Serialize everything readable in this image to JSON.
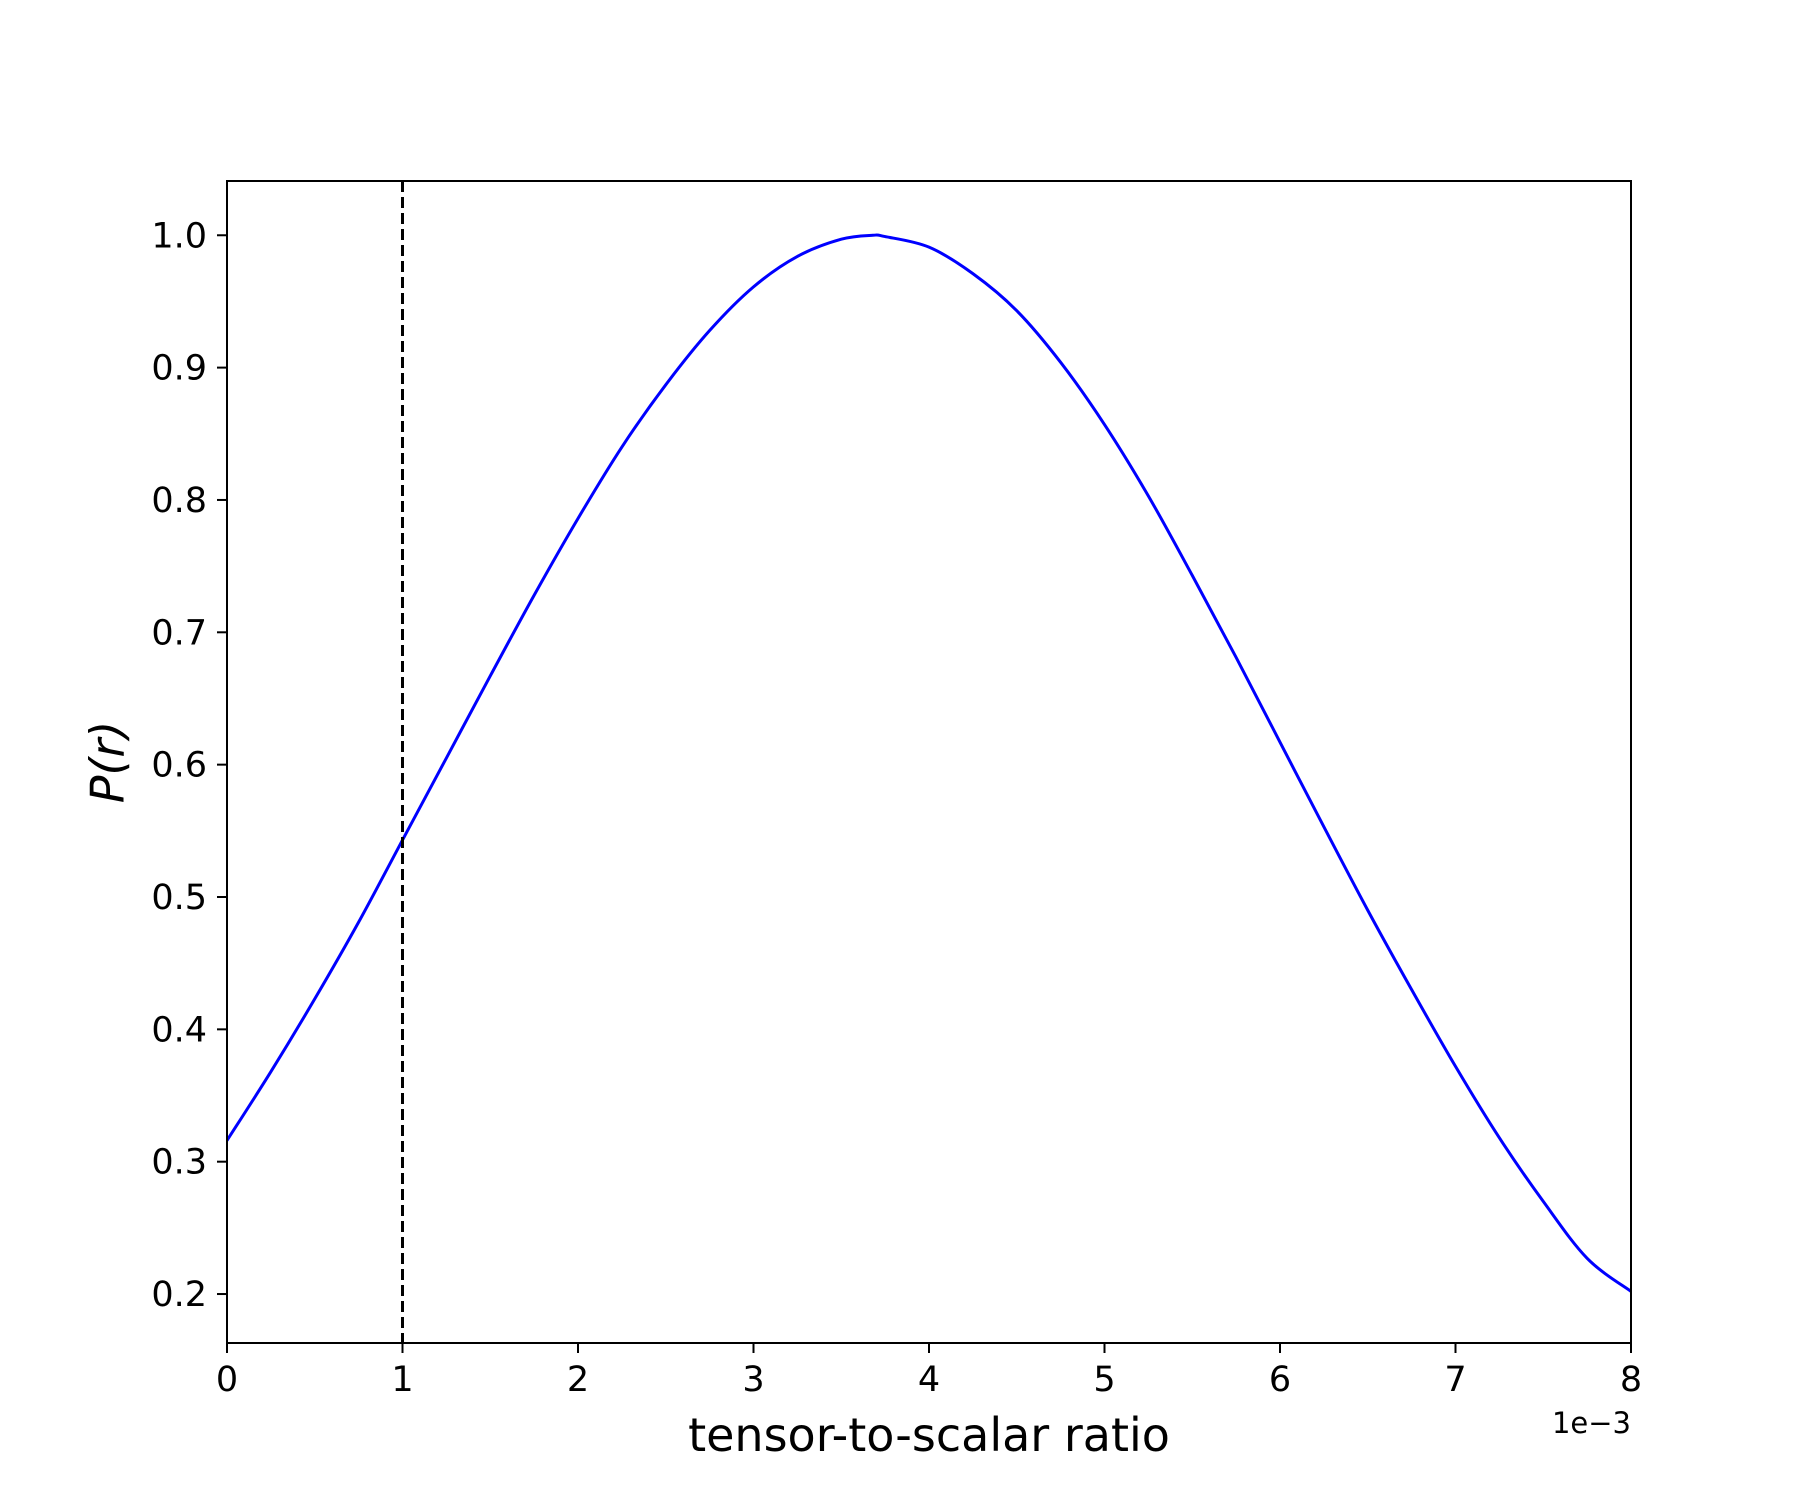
{
  "chart_data": {
    "type": "line",
    "title": "",
    "xlabel": "tensor-to-scalar ratio",
    "ylabel": "P(r)",
    "x_offset_label": "1e−3",
    "xlim": [
      0,
      8
    ],
    "ylim": [
      0.163,
      1.041
    ],
    "x_ticks": [
      0,
      1,
      2,
      3,
      4,
      5,
      6,
      7,
      8
    ],
    "x_tick_labels": [
      "0",
      "1",
      "2",
      "3",
      "4",
      "5",
      "6",
      "7",
      "8"
    ],
    "y_ticks": [
      0.2,
      0.3,
      0.4,
      0.5,
      0.6,
      0.7,
      0.8,
      0.9,
      1.0
    ],
    "y_tick_labels": [
      "0.2",
      "0.3",
      "0.4",
      "0.5",
      "0.6",
      "0.7",
      "0.8",
      "0.9",
      "1.0"
    ],
    "grid": false,
    "series": [
      {
        "color": "#0000ff",
        "style": "solid",
        "x": [
          0,
          0.25,
          0.5,
          0.75,
          1.0,
          1.25,
          1.5,
          1.75,
          2.0,
          2.25,
          2.5,
          2.75,
          3.0,
          3.25,
          3.5,
          3.68,
          3.75,
          4.0,
          4.25,
          4.5,
          4.75,
          5.0,
          5.25,
          5.5,
          5.75,
          6.0,
          6.25,
          6.5,
          6.75,
          7.0,
          7.25,
          7.5,
          7.75,
          8.0
        ],
        "y": [
          0.316,
          0.368,
          0.423,
          0.481,
          0.543,
          0.605,
          0.667,
          0.728,
          0.786,
          0.84,
          0.887,
          0.928,
          0.961,
          0.984,
          0.997,
          1.0,
          0.999,
          0.991,
          0.971,
          0.943,
          0.904,
          0.857,
          0.803,
          0.743,
          0.681,
          0.617,
          0.553,
          0.49,
          0.43,
          0.372,
          0.318,
          0.27,
          0.227,
          0.202
        ]
      }
    ],
    "vertical_line": {
      "x": 1.0,
      "color": "#000000",
      "style": "dashed"
    }
  }
}
